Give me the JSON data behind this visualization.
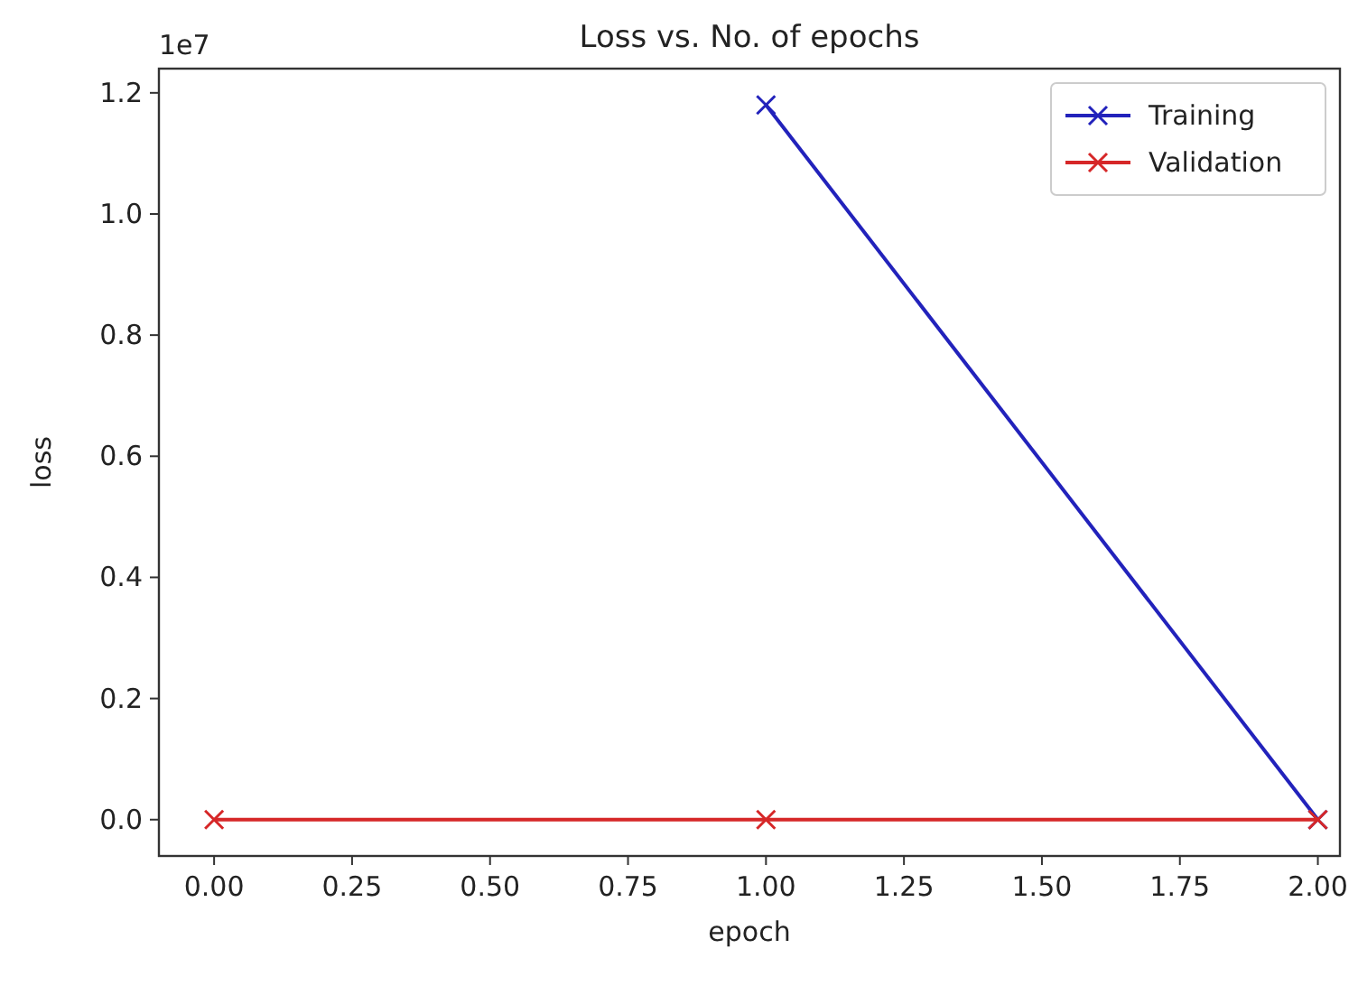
{
  "chart_data": {
    "type": "line",
    "title": "Loss vs. No. of epochs",
    "xlabel": "epoch",
    "ylabel": "loss",
    "annotations": [
      "1e7"
    ],
    "xlim": [
      -0.1,
      2.04
    ],
    "xticks": [
      {
        "value": 0,
        "label": "0.00"
      },
      {
        "value": 0.25,
        "label": "0.25"
      },
      {
        "value": 0.5,
        "label": "0.50"
      },
      {
        "value": 0.75,
        "label": "0.75"
      },
      {
        "value": 1,
        "label": "1.00"
      },
      {
        "value": 1.25,
        "label": "1.25"
      },
      {
        "value": 1.5,
        "label": "1.50"
      },
      {
        "value": 1.75,
        "label": "1.75"
      },
      {
        "value": 2,
        "label": "2.00"
      }
    ],
    "ylim": [
      -0.06,
      1.24
    ],
    "yticks": [
      {
        "value": 0,
        "label": "0.0"
      },
      {
        "value": 0.2,
        "label": "0.2"
      },
      {
        "value": 0.4,
        "label": "0.4"
      },
      {
        "value": 0.6,
        "label": "0.6"
      },
      {
        "value": 0.8,
        "label": "0.8"
      },
      {
        "value": 1,
        "label": "1.0"
      },
      {
        "value": 1.2,
        "label": "1.2"
      }
    ],
    "marker": "cross",
    "legend": "top right",
    "grid": false,
    "series": [
      {
        "name": "Training",
        "color": "#2222bb",
        "x": [
          1,
          2
        ],
        "values": [
          1.18,
          0
        ]
      },
      {
        "name": "Validation",
        "color": "#d62728",
        "x": [
          0,
          1,
          2
        ],
        "values": [
          0,
          0,
          0
        ]
      }
    ]
  }
}
